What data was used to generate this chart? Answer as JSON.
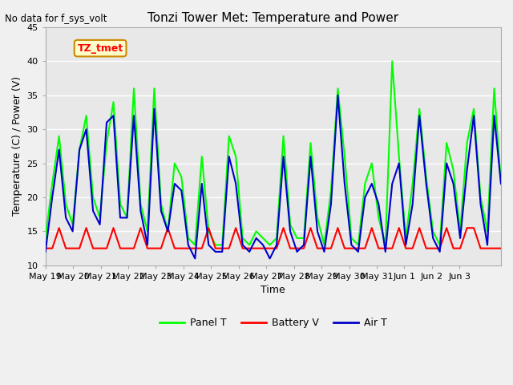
{
  "title": "Tonzi Tower Met: Temperature and Power",
  "top_left_text": "No data for f_sys_volt",
  "ylabel": "Temperature (C) / Power (V)",
  "xlabel": "Time",
  "ylim": [
    10,
    45
  ],
  "xlim_days": 16.5,
  "plot_bg_color": "#e8e8e8",
  "legend_labels": [
    "Panel T",
    "Battery V",
    "Air T"
  ],
  "legend_colors": [
    "#00ff00",
    "#ff0000",
    "#0000cc"
  ],
  "annotation_text": "TZ_tmet",
  "annotation_bg": "#ffffcc",
  "annotation_border": "#cc8800",
  "x_tick_labels": [
    "May 19",
    "May 20",
    "May 21",
    "May 22",
    "May 23",
    "May 24",
    "May 25",
    "May 26",
    "May 27",
    "May 28",
    "May 29",
    "May 30",
    "May 31",
    "Jun 1",
    "Jun 2",
    "Jun 3"
  ],
  "x_tick_positions": [
    0,
    1,
    2,
    3,
    4,
    5,
    6,
    7,
    8,
    9,
    10,
    11,
    12,
    13,
    14,
    15
  ],
  "panel_T": [
    14,
    22,
    29,
    19,
    16,
    27,
    32,
    20,
    17,
    28,
    34,
    19,
    17,
    36,
    19,
    15,
    36,
    19,
    15,
    25,
    23,
    14,
    13,
    26,
    15,
    13,
    13,
    29,
    26,
    14,
    13,
    15,
    14,
    13,
    14,
    29,
    16,
    14,
    14,
    28,
    17,
    13,
    21,
    36,
    26,
    14,
    13,
    22,
    25,
    17,
    13,
    40,
    26,
    14,
    22,
    33,
    23,
    15,
    13,
    28,
    24,
    15,
    28,
    33,
    20,
    15,
    36,
    22
  ],
  "air_T": [
    12,
    20,
    27,
    17,
    15,
    27,
    30,
    18,
    16,
    31,
    32,
    17,
    17,
    32,
    18,
    13,
    33,
    18,
    15,
    22,
    21,
    13,
    11,
    22,
    13,
    12,
    12,
    26,
    22,
    13,
    12,
    14,
    13,
    11,
    13,
    26,
    15,
    12,
    13,
    26,
    15,
    12,
    19,
    35,
    22,
    13,
    12,
    20,
    22,
    19,
    12,
    22,
    25,
    13,
    19,
    32,
    22,
    14,
    12,
    25,
    22,
    14,
    24,
    32,
    19,
    13,
    32,
    22
  ],
  "battery_V": [
    12.5,
    12.5,
    15.5,
    12.5,
    12.5,
    12.5,
    15.5,
    12.5,
    12.5,
    12.5,
    15.5,
    12.5,
    12.5,
    12.5,
    15.5,
    12.5,
    12.5,
    12.5,
    15.5,
    12.5,
    12.5,
    12.5,
    12.5,
    12.5,
    15.5,
    12.5,
    12.5,
    12.5,
    15.5,
    12.5,
    12.5,
    12.5,
    12.5,
    12.5,
    12.5,
    15.5,
    12.5,
    12.5,
    12.5,
    15.5,
    12.5,
    12.5,
    12.5,
    15.5,
    12.5,
    12.5,
    12.5,
    12.5,
    15.5,
    12.5,
    12.5,
    12.5,
    15.5,
    12.5,
    12.5,
    15.5,
    12.5,
    12.5,
    12.5,
    15.5,
    12.5,
    12.5,
    15.5,
    15.5,
    12.5,
    12.5,
    12.5,
    12.5
  ]
}
